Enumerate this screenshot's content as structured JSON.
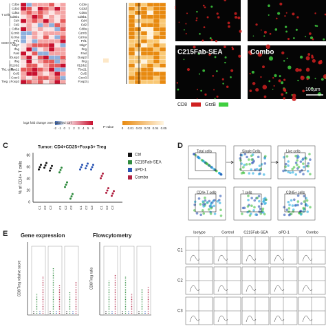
{
  "panel_a": {
    "row_groups": [
      {
        "label": "T cells",
        "genes": [
          "Cd3e",
          "Cd3d",
          "Cd8a",
          "Cd8b1",
          "Cd4",
          "Cd2"
        ]
      },
      {
        "label": "CD8+ CTL",
        "genes": [
          "Cd8a",
          "Gzmb",
          "Gzma",
          "Prf1",
          "Nkg7",
          "Ifng",
          "Fasl",
          "Dusp2"
        ]
      },
      {
        "label": "Th1 cells",
        "genes": [
          "Ifng",
          "Il12rb2",
          "Tbx21",
          "Ccl5",
          "Cxcr3"
        ]
      },
      {
        "label": "Treg",
        "genes": [
          "Foxp3"
        ]
      }
    ],
    "legend_fc": {
      "title": "log2 fold change over matched Ctrl",
      "ticks": [
        "-2",
        "-1",
        "0",
        "1",
        "2",
        "3",
        "4",
        "5",
        "6"
      ]
    },
    "legend_p": {
      "title": "P-value",
      "ticks": [
        "0",
        "0.01",
        "0.02",
        "0.03",
        "0.04",
        "0.05"
      ]
    }
  },
  "panel_b": {
    "labels": [
      "C215Fab-SEA",
      "Combo"
    ],
    "scale_bar": "100µm",
    "legend": [
      "CD8",
      "GrzB"
    ]
  },
  "panel_c": {
    "letter": "C",
    "title": "Tumor: CD4+CD25+Foxp3+ Treg",
    "y_label": "% of CD4+ T cells",
    "yticks": [
      "0",
      "20",
      "40",
      "60",
      "80"
    ],
    "legend": [
      "Ctrl",
      "C215Fab-SEA",
      "αPD-1",
      "Combo"
    ],
    "x_labels": [
      "C1",
      "C2",
      "C3"
    ]
  },
  "panel_d": {
    "letter": "D",
    "gates": [
      "Total cells",
      "Single Cells",
      "Live cells",
      "CD4+ T cells",
      "T cells",
      "CD45+ cells"
    ],
    "columns": [
      "Isotype",
      "Control",
      "C215Fab-SEA",
      "αPD-1",
      "Combo"
    ],
    "rows": [
      "C1",
      "C2",
      "C3"
    ]
  },
  "panel_e": {
    "letter": "E",
    "titles": [
      "Gene expression",
      "Flowcytometry"
    ],
    "y_labels": [
      "CD8/Treg relative score",
      "CD8/Treg ratio"
    ]
  }
}
